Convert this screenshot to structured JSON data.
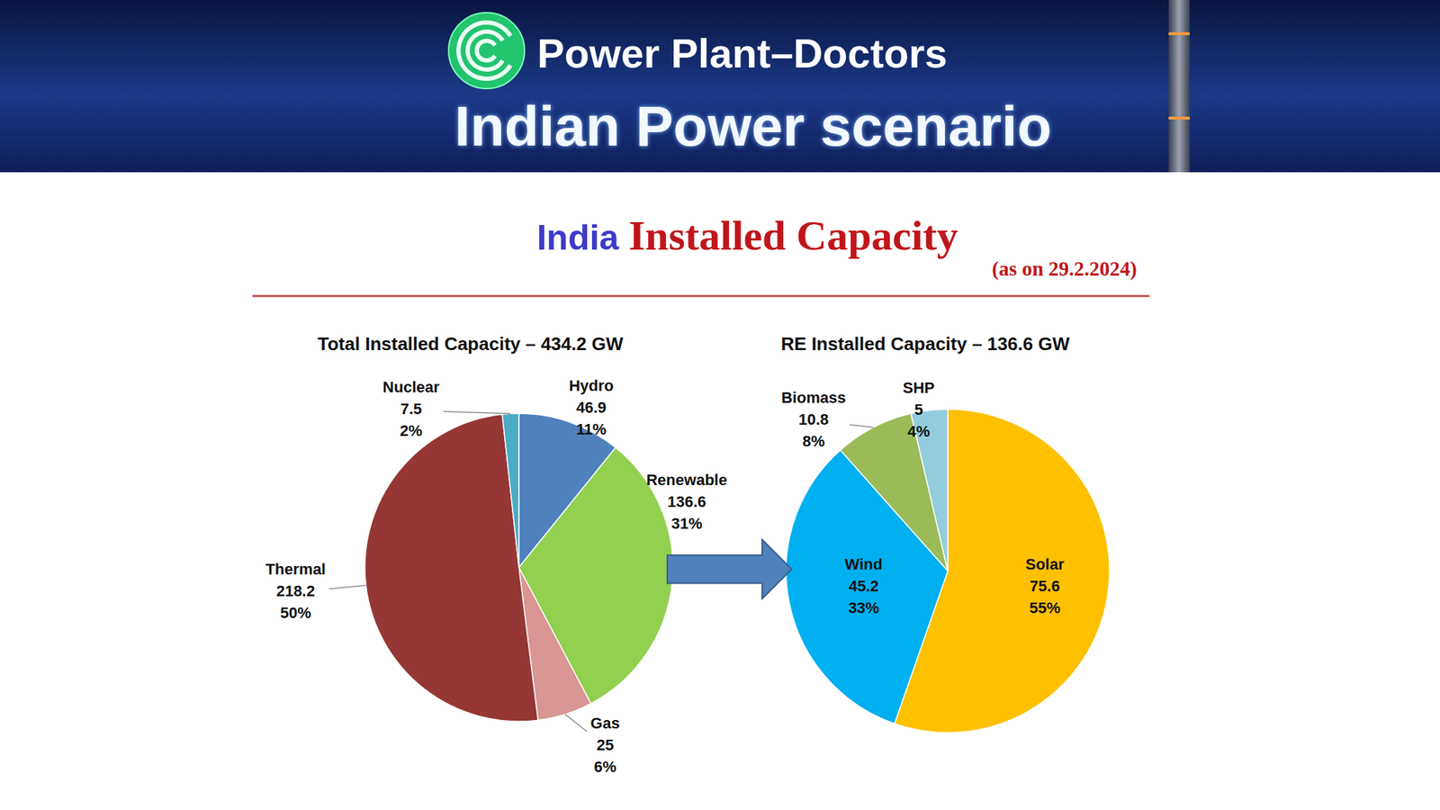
{
  "header": {
    "brand": "Power Plant–Doctors",
    "title": "Indian Power scenario"
  },
  "heading": {
    "country": "India",
    "title": "Installed Capacity",
    "date": "(as on 29.2.2024)"
  },
  "chart_data": [
    {
      "type": "pie",
      "title": "Total Installed Capacity – 434.2 GW",
      "categories": [
        "Hydro",
        "Renewable",
        "Gas",
        "Thermal",
        "Nuclear"
      ],
      "values": [
        46.9,
        136.6,
        25,
        218.2,
        7.5
      ],
      "percent_labels": [
        "11%",
        "31%",
        "6%",
        "50%",
        "2%"
      ],
      "colors": [
        "#4f81bd",
        "#92d050",
        "#d99694",
        "#953735",
        "#4bacc6"
      ],
      "data_labels": true
    },
    {
      "type": "pie",
      "title": "RE Installed Capacity – 136.6 GW",
      "categories": [
        "Solar",
        "Wind",
        "Biomass",
        "SHP"
      ],
      "values": [
        75.6,
        45.2,
        10.8,
        5
      ],
      "percent_labels": [
        "55%",
        "33%",
        "8%",
        "4%"
      ],
      "colors": [
        "#ffc000",
        "#00b0f0",
        "#9bbb59",
        "#93cddd"
      ],
      "data_labels": true
    }
  ]
}
